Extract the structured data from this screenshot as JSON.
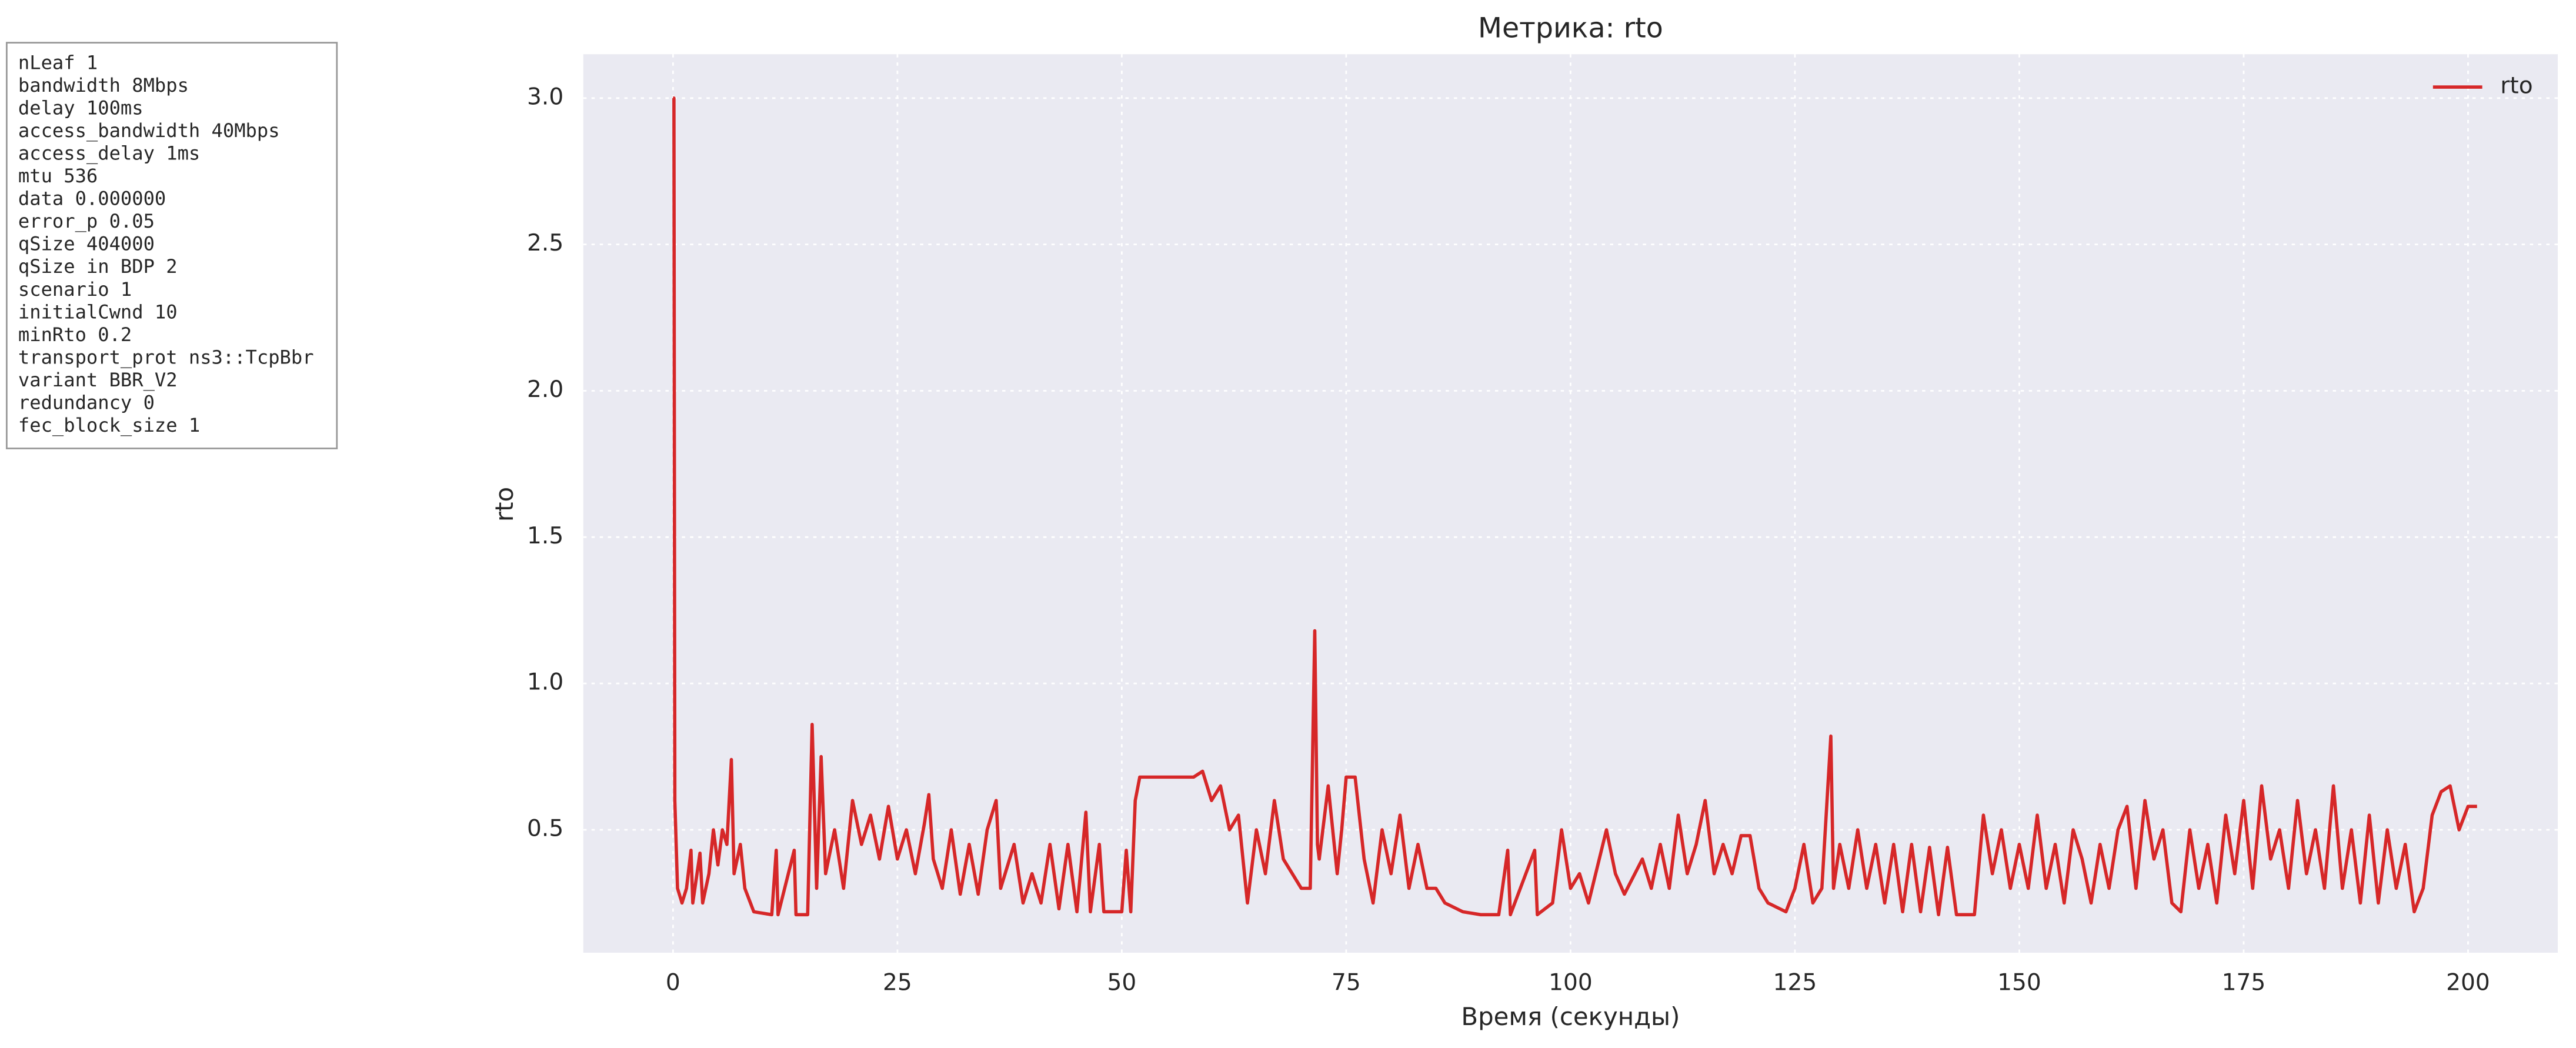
{
  "info_box": {
    "lines": [
      "nLeaf 1",
      "bandwidth 8Mbps",
      "delay  100ms",
      "access_bandwidth 40Mbps",
      "access_delay 1ms",
      "mtu 536",
      "data  0.000000",
      "error_p 0.05",
      "qSize 404000",
      "qSize in BDP 2",
      "scenario 1",
      "initialCwnd  10",
      "minRto 0.2",
      "transport_prot ns3::TcpBbr",
      "variant BBR_V2",
      "redundancy 0",
      "fec_block_size 1"
    ]
  },
  "chart_data": {
    "type": "line",
    "title": "Метрика: rto",
    "x_label": "Время (секунды)",
    "y_label": "rto",
    "xlim": [
      -10,
      210
    ],
    "ylim": [
      0.08,
      3.15
    ],
    "xticks": [
      0,
      25,
      50,
      75,
      100,
      125,
      150,
      175,
      200
    ],
    "yticks": [
      0.5,
      {
        "value": 1.0,
        "label": "1.0"
      },
      1.5,
      {
        "value": 2.0,
        "label": "2.0"
      },
      2.5,
      {
        "value": 3.0,
        "label": "3.0"
      }
    ],
    "grid": true,
    "legend": "upper right",
    "series": [
      {
        "name": "rto",
        "color": "#d62728",
        "x": [
          0,
          0.1,
          0.2,
          0.5,
          1,
          1.5,
          2,
          2.2,
          3,
          3.3,
          4,
          4.5,
          5,
          5.5,
          6,
          6.5,
          6.8,
          7.5,
          8,
          9,
          11,
          11.5,
          11.7,
          13.5,
          13.7,
          15,
          15.5,
          16,
          16.5,
          17,
          18,
          19,
          20,
          21,
          22,
          23,
          24,
          25,
          26,
          27,
          28,
          28.5,
          29,
          30,
          31,
          32,
          33,
          34,
          35,
          36,
          36.5,
          38,
          39,
          40,
          41,
          42,
          43,
          44,
          45,
          46,
          46.5,
          47.5,
          48,
          50,
          50.5,
          51,
          51.5,
          52,
          55,
          58,
          59,
          60,
          61,
          62,
          63,
          64,
          65,
          66,
          67,
          68,
          69,
          70,
          71,
          71.5,
          71.8,
          72,
          73,
          74,
          74.5,
          75,
          76,
          77,
          78,
          79,
          80,
          81,
          82,
          83,
          84,
          85,
          86,
          88,
          90,
          92,
          93,
          93.3,
          96,
          96.3,
          98,
          99,
          100,
          101,
          102,
          104,
          105,
          106,
          108,
          109,
          110,
          111,
          112,
          113,
          114,
          115,
          116,
          117,
          118,
          119,
          120,
          121,
          122,
          124,
          125,
          126,
          127,
          128,
          129,
          129.3,
          130,
          131,
          132,
          133,
          134,
          135,
          136,
          137,
          138,
          139,
          140,
          141,
          142,
          143,
          145,
          146,
          147,
          148,
          149,
          150,
          151,
          152,
          153,
          154,
          155,
          156,
          157,
          158,
          159,
          160,
          161,
          162,
          163,
          164,
          165,
          166,
          167,
          168,
          169,
          170,
          171,
          172,
          173,
          174,
          175,
          176,
          177,
          178,
          179,
          180,
          181,
          182,
          183,
          184,
          185,
          186,
          187,
          188,
          189,
          190,
          191,
          192,
          193,
          194,
          195,
          196,
          197,
          198,
          199,
          200,
          201
        ],
        "values": [
          3.0,
          3.0,
          0.6,
          0.3,
          0.25,
          0.3,
          0.43,
          0.25,
          0.42,
          0.25,
          0.35,
          0.5,
          0.38,
          0.5,
          0.45,
          0.74,
          0.35,
          0.45,
          0.3,
          0.22,
          0.21,
          0.43,
          0.21,
          0.43,
          0.21,
          0.21,
          0.86,
          0.3,
          0.75,
          0.35,
          0.5,
          0.3,
          0.6,
          0.45,
          0.55,
          0.4,
          0.58,
          0.4,
          0.5,
          0.35,
          0.52,
          0.62,
          0.4,
          0.3,
          0.5,
          0.28,
          0.45,
          0.28,
          0.5,
          0.6,
          0.3,
          0.45,
          0.25,
          0.35,
          0.25,
          0.45,
          0.23,
          0.45,
          0.22,
          0.56,
          0.22,
          0.45,
          0.22,
          0.22,
          0.43,
          0.22,
          0.6,
          0.68,
          0.68,
          0.68,
          0.7,
          0.6,
          0.65,
          0.5,
          0.55,
          0.25,
          0.5,
          0.35,
          0.6,
          0.4,
          0.35,
          0.3,
          0.3,
          1.18,
          0.45,
          0.4,
          0.65,
          0.35,
          0.5,
          0.68,
          0.68,
          0.4,
          0.25,
          0.5,
          0.35,
          0.55,
          0.3,
          0.45,
          0.3,
          0.3,
          0.25,
          0.22,
          0.21,
          0.21,
          0.43,
          0.21,
          0.43,
          0.21,
          0.25,
          0.5,
          0.3,
          0.35,
          0.25,
          0.5,
          0.35,
          0.28,
          0.4,
          0.3,
          0.45,
          0.3,
          0.55,
          0.35,
          0.45,
          0.6,
          0.35,
          0.45,
          0.35,
          0.48,
          0.48,
          0.3,
          0.25,
          0.22,
          0.3,
          0.45,
          0.25,
          0.3,
          0.82,
          0.3,
          0.45,
          0.3,
          0.5,
          0.3,
          0.45,
          0.25,
          0.45,
          0.22,
          0.45,
          0.22,
          0.44,
          0.21,
          0.44,
          0.21,
          0.21,
          0.55,
          0.35,
          0.5,
          0.3,
          0.45,
          0.3,
          0.55,
          0.3,
          0.45,
          0.25,
          0.5,
          0.4,
          0.25,
          0.45,
          0.3,
          0.5,
          0.58,
          0.3,
          0.6,
          0.4,
          0.5,
          0.25,
          0.22,
          0.5,
          0.3,
          0.45,
          0.25,
          0.55,
          0.35,
          0.6,
          0.3,
          0.65,
          0.4,
          0.5,
          0.3,
          0.6,
          0.35,
          0.5,
          0.3,
          0.65,
          0.3,
          0.5,
          0.25,
          0.55,
          0.25,
          0.5,
          0.3,
          0.45,
          0.22,
          0.3,
          0.55,
          0.63,
          0.65,
          0.5,
          0.58,
          0.58
        ]
      }
    ]
  }
}
